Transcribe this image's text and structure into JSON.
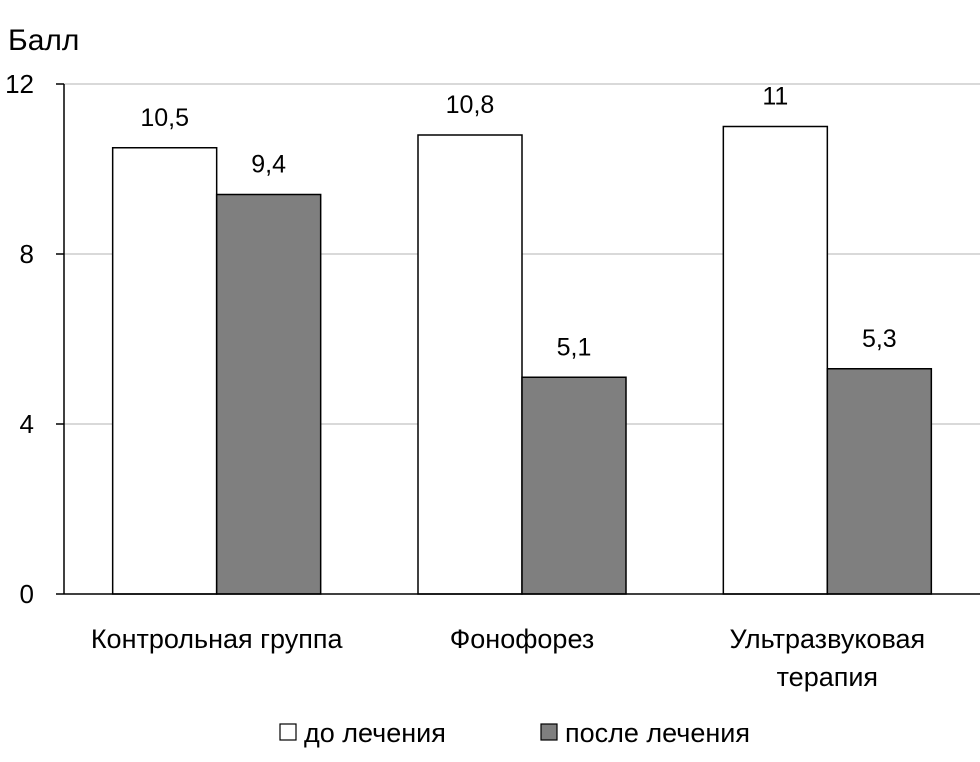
{
  "chart_data": {
    "type": "bar",
    "ylabel": "Балл",
    "xlabel": "",
    "ylim": [
      0,
      12
    ],
    "yticks": [
      0,
      4,
      8,
      12
    ],
    "grid": true,
    "legend_position": "bottom",
    "categories": [
      [
        "Контрольная группа"
      ],
      [
        "Фонофорез"
      ],
      [
        "Ультразвуковая",
        "терапия"
      ]
    ],
    "series": [
      {
        "name": "до лечения",
        "values": [
          10.5,
          10.8,
          11
        ],
        "labels": [
          "10,5",
          "10,8",
          "11"
        ],
        "color": "#ffffff"
      },
      {
        "name": "после лечения",
        "values": [
          9.4,
          5.1,
          5.3
        ],
        "labels": [
          "9,4",
          "5,1",
          "5,3"
        ],
        "color": "#7f7f7f"
      }
    ]
  }
}
